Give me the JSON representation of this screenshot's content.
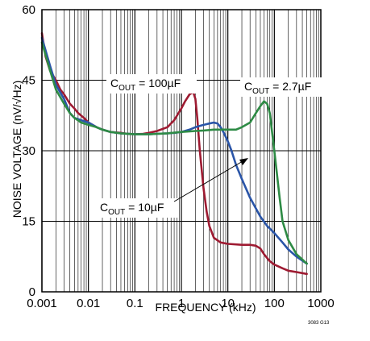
{
  "chart_data": {
    "type": "line",
    "xlabel": "FREQUENCY (kHz)",
    "ylabel": "NOISE VOLTAGE (nV/√Hz)",
    "xscale": "log",
    "xlim": [
      0.001,
      1000
    ],
    "ylim": [
      0,
      60
    ],
    "x_ticks": [
      "0.001",
      "0.01",
      "0.1",
      "1",
      "10",
      "100",
      "1000"
    ],
    "y_ticks": [
      "0",
      "15",
      "30",
      "45",
      "60"
    ],
    "grid": true,
    "figure_number": "3083 G13",
    "annotations": [
      {
        "main": "C",
        "sub": "OUT",
        "rest": " = 100µF"
      },
      {
        "main": "C",
        "sub": "OUT",
        "rest": " = 2.7µF"
      },
      {
        "main": "C",
        "sub": "OUT",
        "rest": " = 10µF"
      }
    ],
    "series": [
      {
        "color": "#9e1b32",
        "x": [
          0.001,
          0.0012,
          0.0015,
          0.002,
          0.0025,
          0.003,
          0.004,
          0.005,
          0.006,
          0.008,
          0.01,
          0.015,
          0.02,
          0.03,
          0.05,
          0.07,
          0.1,
          0.15,
          0.2,
          0.3,
          0.5,
          0.7,
          1,
          1.2,
          1.5,
          1.8,
          2,
          2.2,
          2.5,
          3,
          3.5,
          4,
          5,
          7,
          10,
          20,
          30,
          40,
          50,
          60,
          80,
          100,
          150,
          200,
          300,
          500
        ],
        "y": [
          55,
          50,
          47,
          45,
          43,
          42,
          40,
          39,
          38,
          37,
          36,
          35,
          34.5,
          34,
          33.8,
          33.6,
          33.5,
          33.6,
          33.8,
          34.2,
          35,
          36.5,
          39,
          40.5,
          42,
          42.5,
          41,
          37,
          30,
          22,
          17,
          14,
          11.5,
          10.5,
          10.2,
          10,
          10,
          9.8,
          9.2,
          8,
          6.5,
          5.8,
          5,
          4.5,
          4.2,
          3.8
        ]
      },
      {
        "color": "#2a55a8",
        "x": [
          0.001,
          0.0015,
          0.002,
          0.003,
          0.004,
          0.005,
          0.007,
          0.01,
          0.015,
          0.02,
          0.03,
          0.05,
          0.1,
          0.2,
          0.3,
          0.5,
          0.7,
          1,
          1.5,
          2,
          3,
          4,
          5,
          6,
          7,
          8,
          10,
          12,
          15,
          20,
          30,
          50,
          70,
          100,
          150,
          200,
          300,
          500
        ],
        "y": [
          54,
          48,
          44,
          41,
          38,
          37,
          36.5,
          36,
          35,
          34.5,
          34,
          33.7,
          33.5,
          33.5,
          33.6,
          33.7,
          33.8,
          34,
          34.5,
          35,
          35.5,
          35.8,
          36,
          35.8,
          35,
          34,
          32,
          30,
          27,
          24,
          20,
          16,
          14,
          12.5,
          10.5,
          9,
          7.5,
          6
        ]
      },
      {
        "color": "#2e8b45",
        "x": [
          0.001,
          0.0015,
          0.002,
          0.003,
          0.004,
          0.005,
          0.007,
          0.01,
          0.015,
          0.02,
          0.03,
          0.05,
          0.1,
          0.2,
          0.3,
          0.5,
          1,
          2,
          3,
          5,
          7,
          10,
          15,
          20,
          30,
          40,
          50,
          60,
          70,
          80,
          100,
          130,
          150,
          200,
          300,
          500
        ],
        "y": [
          53,
          47,
          43,
          40,
          38,
          37,
          36,
          35.5,
          35,
          34.5,
          34,
          33.7,
          33.5,
          33.5,
          33.6,
          33.7,
          34,
          34.2,
          34.3,
          34.5,
          34.5,
          34.5,
          34.5,
          35,
          36,
          38,
          39.5,
          40.5,
          40,
          38,
          30,
          20,
          15,
          11,
          8,
          6
        ]
      }
    ]
  }
}
